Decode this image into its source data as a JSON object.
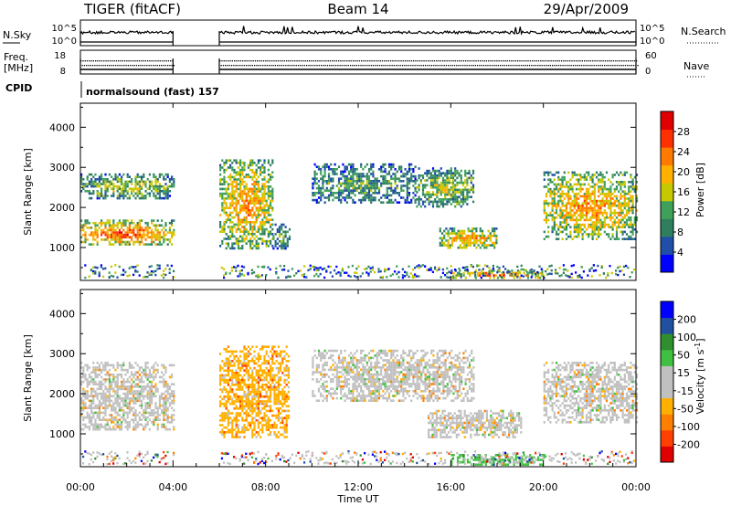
{
  "header": {
    "station": "TIGER (fitACF)",
    "beam": "Beam 14",
    "date": "29/Apr/2009"
  },
  "panels": {
    "noise": {
      "left_label": "N.Sky",
      "right_label": "N.Search",
      "left_ticks": [
        "10^5",
        "10^0"
      ],
      "right_ticks": [
        "10^5",
        "10^0"
      ]
    },
    "freq": {
      "left_label_1": "Freq.",
      "left_label_2": "[MHz]",
      "right_label": "Nave",
      "left_ticks": [
        "18",
        "8"
      ],
      "right_ticks": [
        "60",
        "0"
      ]
    },
    "cpid": {
      "label": "CPID",
      "text": "normalsound (fast) 157"
    }
  },
  "colors": {
    "power_scale": [
      "#0000ff",
      "#1f4fa8",
      "#2f7f5f",
      "#3fa05a",
      "#c8c800",
      "#ffb000",
      "#ff7a00",
      "#ff3000",
      "#e00000"
    ],
    "velocity_scale": [
      "#e00000",
      "#ff4000",
      "#ff8000",
      "#ffb000",
      "#c0c0c0",
      "#c0c0c0",
      "#40c040",
      "#2f8f2f",
      "#2050a0",
      "#0000ff"
    ],
    "ground_scatter": "#c0c0c0"
  },
  "chart_data": [
    {
      "type": "heatmap",
      "name": "power",
      "ylabel": "Slant Range [km]",
      "ylim": [
        180,
        4600
      ],
      "yticks": [
        "1000",
        "2000",
        "3000",
        "4000"
      ],
      "colorbar_label": "Power [dB]",
      "colorbar_ticks": [
        "4",
        "8",
        "12",
        "16",
        "20",
        "24",
        "28"
      ],
      "data_gap_hours": [
        4.0,
        6.0
      ],
      "echo_regions": [
        {
          "t0": 0.0,
          "t1": 4.0,
          "r0": 1050,
          "r1": 1700,
          "level": 7
        },
        {
          "t0": 0.0,
          "t1": 4.0,
          "r0": 2200,
          "r1": 2850,
          "level": 4
        },
        {
          "t0": 6.0,
          "t1": 8.3,
          "r0": 1000,
          "r1": 3200,
          "level": 6
        },
        {
          "t0": 8.3,
          "t1": 9.0,
          "r0": 1000,
          "r1": 1600,
          "level": 3
        },
        {
          "t0": 10.0,
          "t1": 14.5,
          "r0": 2100,
          "r1": 3100,
          "level": 3
        },
        {
          "t0": 14.5,
          "t1": 17.0,
          "r0": 2000,
          "r1": 3000,
          "level": 4
        },
        {
          "t0": 15.5,
          "t1": 18.0,
          "r0": 1000,
          "r1": 1500,
          "level": 6
        },
        {
          "t0": 16.0,
          "t1": 20.0,
          "r0": 250,
          "r1": 450,
          "level": 7
        },
        {
          "t0": 20.0,
          "t1": 24.0,
          "r0": 1200,
          "r1": 2900,
          "level": 6
        }
      ]
    },
    {
      "type": "heatmap",
      "name": "velocity",
      "ylabel": "Slant Range [km]",
      "ylim": [
        180,
        4600
      ],
      "yticks": [
        "1000",
        "2000",
        "3000",
        "4000"
      ],
      "xlabel": "Time UT",
      "xlim": [
        0,
        24
      ],
      "xticks": [
        "00:00",
        "04:00",
        "08:00",
        "12:00",
        "16:00",
        "20:00",
        "00:00"
      ],
      "colorbar_label": "Velocity [m s^-1]",
      "colorbar_ticks": [
        "-200",
        "-100",
        "-50",
        "-15",
        "15",
        "50",
        "100",
        "200"
      ],
      "data_gap_hours": [
        4.0,
        6.0
      ],
      "echo_regions": [
        {
          "t0": 0.0,
          "t1": 4.0,
          "r0": 1100,
          "r1": 2800,
          "level": 4
        },
        {
          "t0": 6.0,
          "t1": 9.0,
          "r0": 900,
          "r1": 3200,
          "level": 3
        },
        {
          "t0": 10.0,
          "t1": 17.0,
          "r0": 1800,
          "r1": 3100,
          "level": 4
        },
        {
          "t0": 15.0,
          "t1": 19.0,
          "r0": 900,
          "r1": 1600,
          "level": 4
        },
        {
          "t0": 16.0,
          "t1": 20.0,
          "r0": 250,
          "r1": 500,
          "level": 6
        },
        {
          "t0": 20.0,
          "t1": 24.0,
          "r0": 1300,
          "r1": 2800,
          "level": 4
        }
      ]
    }
  ]
}
